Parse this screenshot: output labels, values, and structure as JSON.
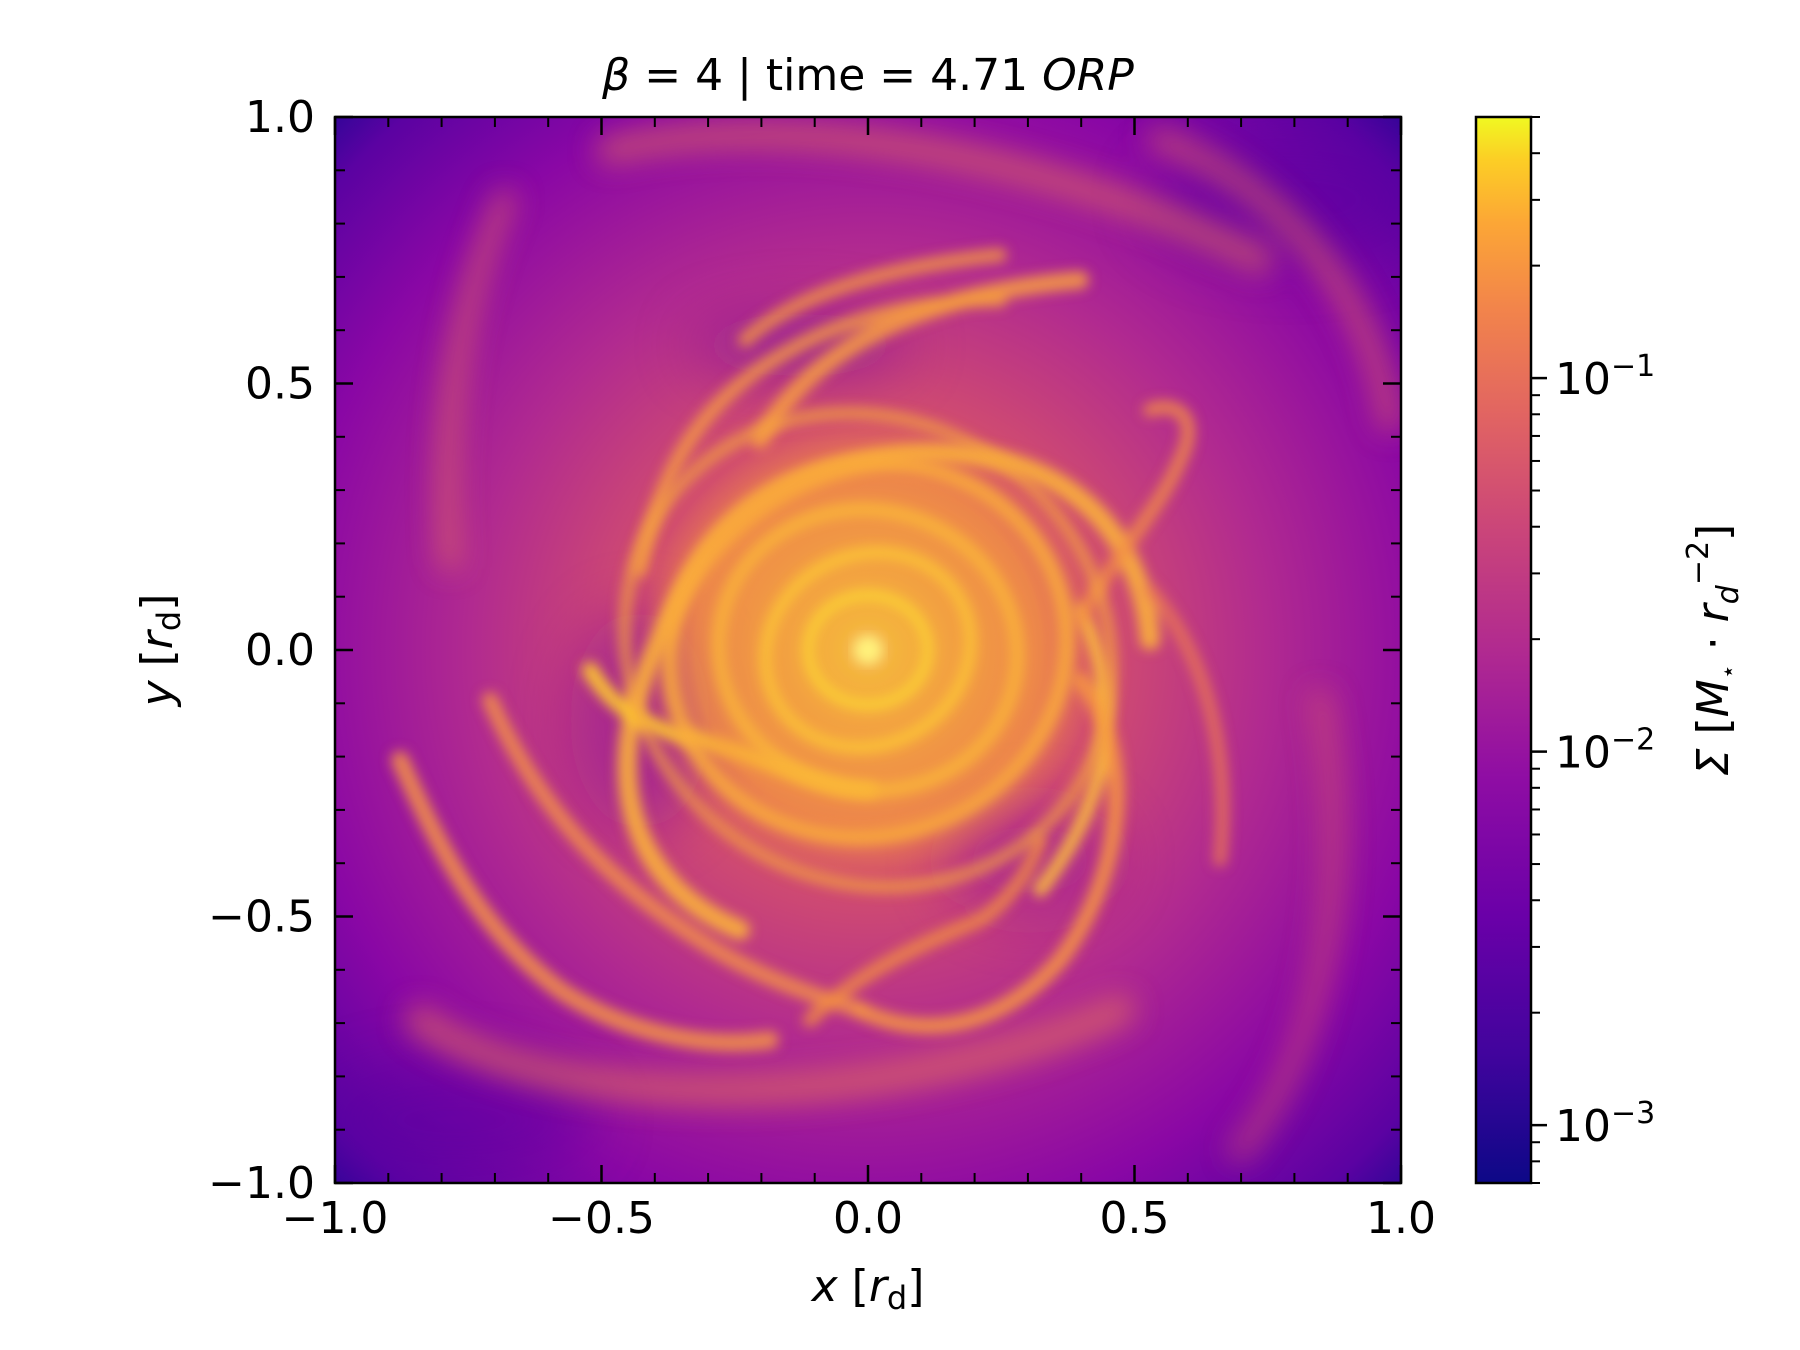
{
  "chart_data": {
    "type": "heatmap",
    "title": "β = 4 | time = 4.71 ORP",
    "title_parts": {
      "prefix": "β",
      "middle": " = 4 | time = 4.71 ",
      "suffix": "ORP"
    },
    "xlabel": "x [r_d]",
    "xlabel_parts": {
      "var": "x",
      "unit_main": "r",
      "unit_sub": "d"
    },
    "ylabel": "y [r_d]",
    "ylabel_parts": {
      "var": "y",
      "unit_main": "r",
      "unit_sub": "d"
    },
    "colorbar_label": "Σ [M⋆·r_d^-2]",
    "colorbar_label_parts": {
      "sigma": "Σ",
      "m": "M",
      "star": "⋆",
      "dot": " · ",
      "r": "r",
      "sub": "d",
      "sup": "−2"
    },
    "xlim": [
      -1.0,
      1.0
    ],
    "ylim": [
      -1.0,
      1.0
    ],
    "xticks": [
      -1.0,
      -0.5,
      0.0,
      0.5,
      1.0
    ],
    "xtick_labels": [
      "−1.0",
      "−0.5",
      "0.0",
      "0.5",
      "1.0"
    ],
    "yticks": [
      -1.0,
      -0.5,
      0.0,
      0.5,
      1.0
    ],
    "ytick_labels": [
      "−1.0",
      "−0.5",
      "0.0",
      "0.5",
      "1.0"
    ],
    "colorbar_scale": "log",
    "colorbar_range": [
      0.0007,
      0.5
    ],
    "colorbar_ticks": [
      0.001,
      0.01,
      0.1
    ],
    "colorbar_tick_labels": [
      {
        "base": "10",
        "exp": "−3"
      },
      {
        "base": "10",
        "exp": "−2"
      },
      {
        "base": "10",
        "exp": "−1"
      }
    ],
    "colormap": "plasma",
    "colormap_stops": [
      "#0d0887",
      "#6a00a8",
      "#b12a90",
      "#e16462",
      "#fca636",
      "#f0f921"
    ],
    "grid": false,
    "description_note": "",
    "features": {
      "center_peak_value": 0.3,
      "background_outer_value": 0.001,
      "pattern": "multi-armed spiral density structure centered at (0,0)"
    }
  }
}
